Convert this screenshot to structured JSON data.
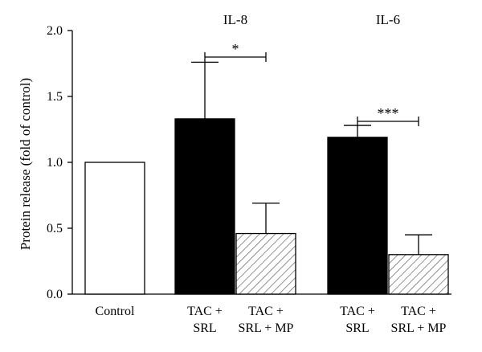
{
  "chart_data": {
    "type": "bar",
    "ylabel": "Protein release (fold of control)",
    "ylim": [
      0.0,
      2.0
    ],
    "yticks": [
      "0.0",
      "0.5",
      "1.0",
      "1.5",
      "2.0"
    ],
    "groups": [
      {
        "label": "",
        "categories": [
          {
            "line1": "Control",
            "line2": ""
          }
        ]
      },
      {
        "label": "IL-8",
        "categories": [
          {
            "line1": "TAC +",
            "line2": "SRL"
          },
          {
            "line1": "TAC +",
            "line2": "SRL + MP"
          }
        ]
      },
      {
        "label": "IL-6",
        "categories": [
          {
            "line1": "TAC +",
            "line2": "SRL"
          },
          {
            "line1": "TAC +",
            "line2": "SRL + MP"
          }
        ]
      }
    ],
    "bars": [
      {
        "value": 1.0,
        "error": 0.0,
        "fill": "white"
      },
      {
        "value": 1.33,
        "error": 0.43,
        "fill": "black"
      },
      {
        "value": 0.46,
        "error": 0.23,
        "fill": "hatched"
      },
      {
        "value": 1.19,
        "error": 0.09,
        "fill": "black"
      },
      {
        "value": 0.3,
        "error": 0.15,
        "fill": "hatched"
      }
    ],
    "annotations": [
      {
        "text": "*",
        "from_bar": 1,
        "to_bar": 2
      },
      {
        "text": "***",
        "from_bar": 3,
        "to_bar": 4
      }
    ],
    "colors": {
      "bar_dark": "#000000",
      "bar_light": "#ffffff",
      "hatch": "#555555",
      "axis": "#000000"
    }
  }
}
